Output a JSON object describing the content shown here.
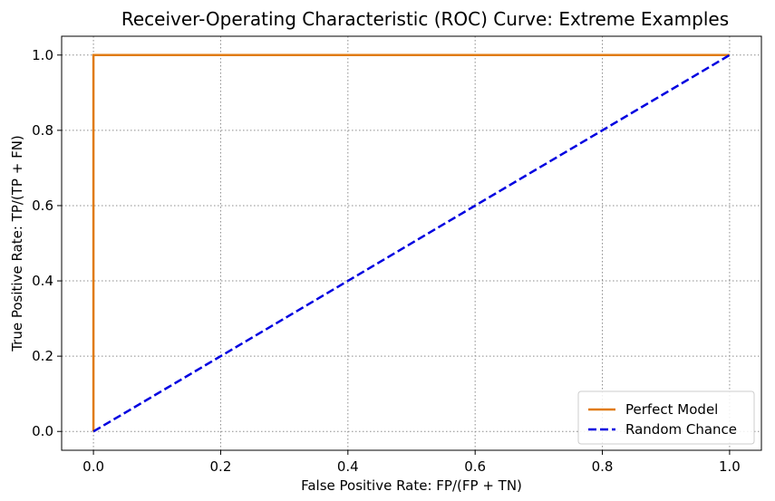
{
  "chart_data": {
    "type": "line",
    "title": "Receiver-Operating Characteristic (ROC) Curve: Extreme Examples",
    "xlabel": "False Positive Rate: FP/(FP + TN)",
    "ylabel": "True Positive Rate: TP/(TP + FN)",
    "xlim": [
      -0.05,
      1.05
    ],
    "ylim": [
      -0.05,
      1.05
    ],
    "xticks": [
      0.0,
      0.2,
      0.4,
      0.6,
      0.8,
      1.0
    ],
    "yticks": [
      0.0,
      0.2,
      0.4,
      0.6,
      0.8,
      1.0
    ],
    "xtick_labels": [
      "0.0",
      "0.2",
      "0.4",
      "0.6",
      "0.8",
      "1.0"
    ],
    "ytick_labels": [
      "0.0",
      "0.2",
      "0.4",
      "0.6",
      "0.8",
      "1.0"
    ],
    "grid": true,
    "legend_position": "bottom-right",
    "series": [
      {
        "name": "Perfect Model",
        "color": "#e07b10",
        "style": "solid",
        "x": [
          0,
          0,
          1
        ],
        "y": [
          0,
          1,
          1
        ]
      },
      {
        "name": "Random Chance",
        "color": "#0000e0",
        "style": "dashed",
        "x": [
          0,
          1
        ],
        "y": [
          0,
          1
        ]
      }
    ]
  }
}
